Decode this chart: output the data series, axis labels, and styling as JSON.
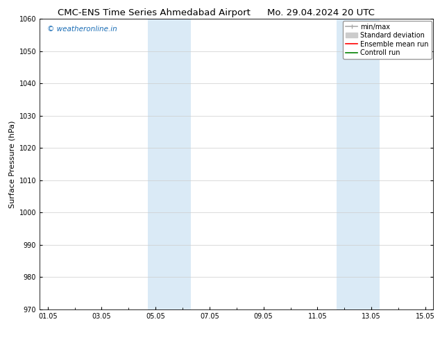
{
  "title": "CMC-ENS Time Series Ahmedabad Airport",
  "title2": "Mo. 29.04.2024 20 UTC",
  "ylabel": "Surface Pressure (hPa)",
  "ylim": [
    970,
    1060
  ],
  "yticks": [
    970,
    980,
    990,
    1000,
    1010,
    1020,
    1030,
    1040,
    1050,
    1060
  ],
  "xtick_labels": [
    "01.05",
    "03.05",
    "05.05",
    "07.05",
    "09.05",
    "11.05",
    "13.05",
    "15.05"
  ],
  "xtick_positions": [
    0,
    2,
    4,
    6,
    8,
    10,
    12,
    14
  ],
  "xlim": [
    -0.3,
    14.3
  ],
  "shaded_bands": [
    {
      "xmin": 3.7,
      "xmax": 5.3
    },
    {
      "xmin": 10.7,
      "xmax": 12.3
    }
  ],
  "shaded_color": "#daeaf6",
  "watermark_text": "© weatheronline.in",
  "watermark_color": "#1a6db5",
  "legend_entries": [
    {
      "label": "min/max",
      "color": "#aaaaaa",
      "lw": 1.2,
      "style": "minmax"
    },
    {
      "label": "Standard deviation",
      "color": "#cccccc",
      "lw": 7,
      "style": "bar"
    },
    {
      "label": "Ensemble mean run",
      "color": "red",
      "lw": 1.2,
      "style": "line"
    },
    {
      "label": "Controll run",
      "color": "green",
      "lw": 1.2,
      "style": "line"
    }
  ],
  "background_color": "#ffffff",
  "grid_color": "#cccccc",
  "title_fontsize": 9.5,
  "tick_fontsize": 7,
  "ylabel_fontsize": 8,
  "legend_fontsize": 7
}
